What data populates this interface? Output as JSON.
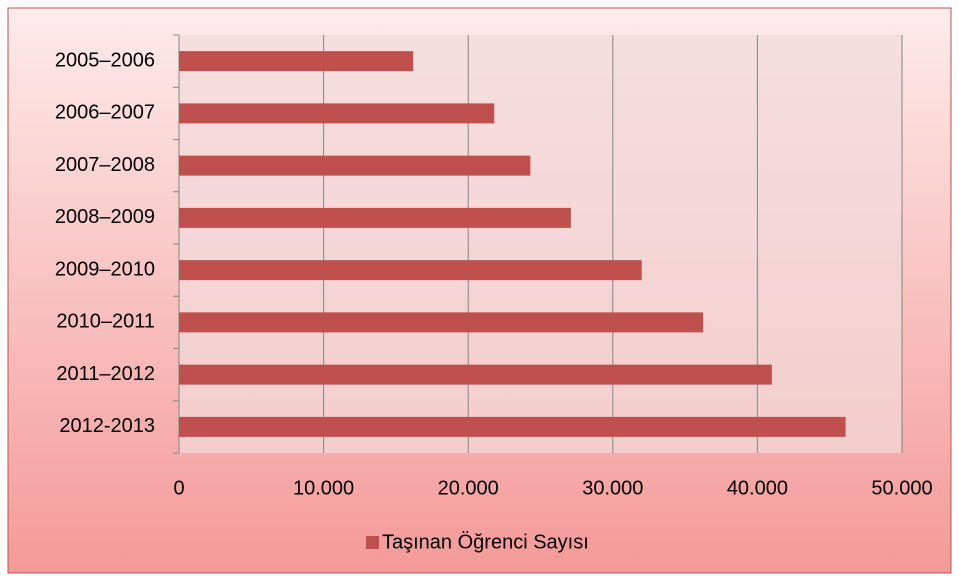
{
  "chart_data": {
    "type": "bar",
    "orientation": "horizontal",
    "categories": [
      "2005–2006",
      "2006–2007",
      "2007–2008",
      "2008–2009",
      "2009–2010",
      "2010–2011",
      "2011–2012",
      "2012-2013"
    ],
    "series": [
      {
        "name": "Taşınan Öğrenci Sayısı",
        "color": "#c0504d",
        "values": [
          16200,
          21800,
          24300,
          27100,
          32000,
          36250,
          41000,
          46100
        ]
      }
    ],
    "xlim": [
      0,
      50000
    ],
    "xticks": [
      0,
      {
        "value": 10000,
        "label": "10.000"
      },
      {
        "value": 20000,
        "label": "20.000"
      },
      {
        "value": 30000,
        "label": "30.000"
      },
      {
        "value": 40000,
        "label": "40.000"
      },
      {
        "value": 50000,
        "label": "50.000"
      }
    ],
    "grid": true,
    "legend": "bottom"
  }
}
